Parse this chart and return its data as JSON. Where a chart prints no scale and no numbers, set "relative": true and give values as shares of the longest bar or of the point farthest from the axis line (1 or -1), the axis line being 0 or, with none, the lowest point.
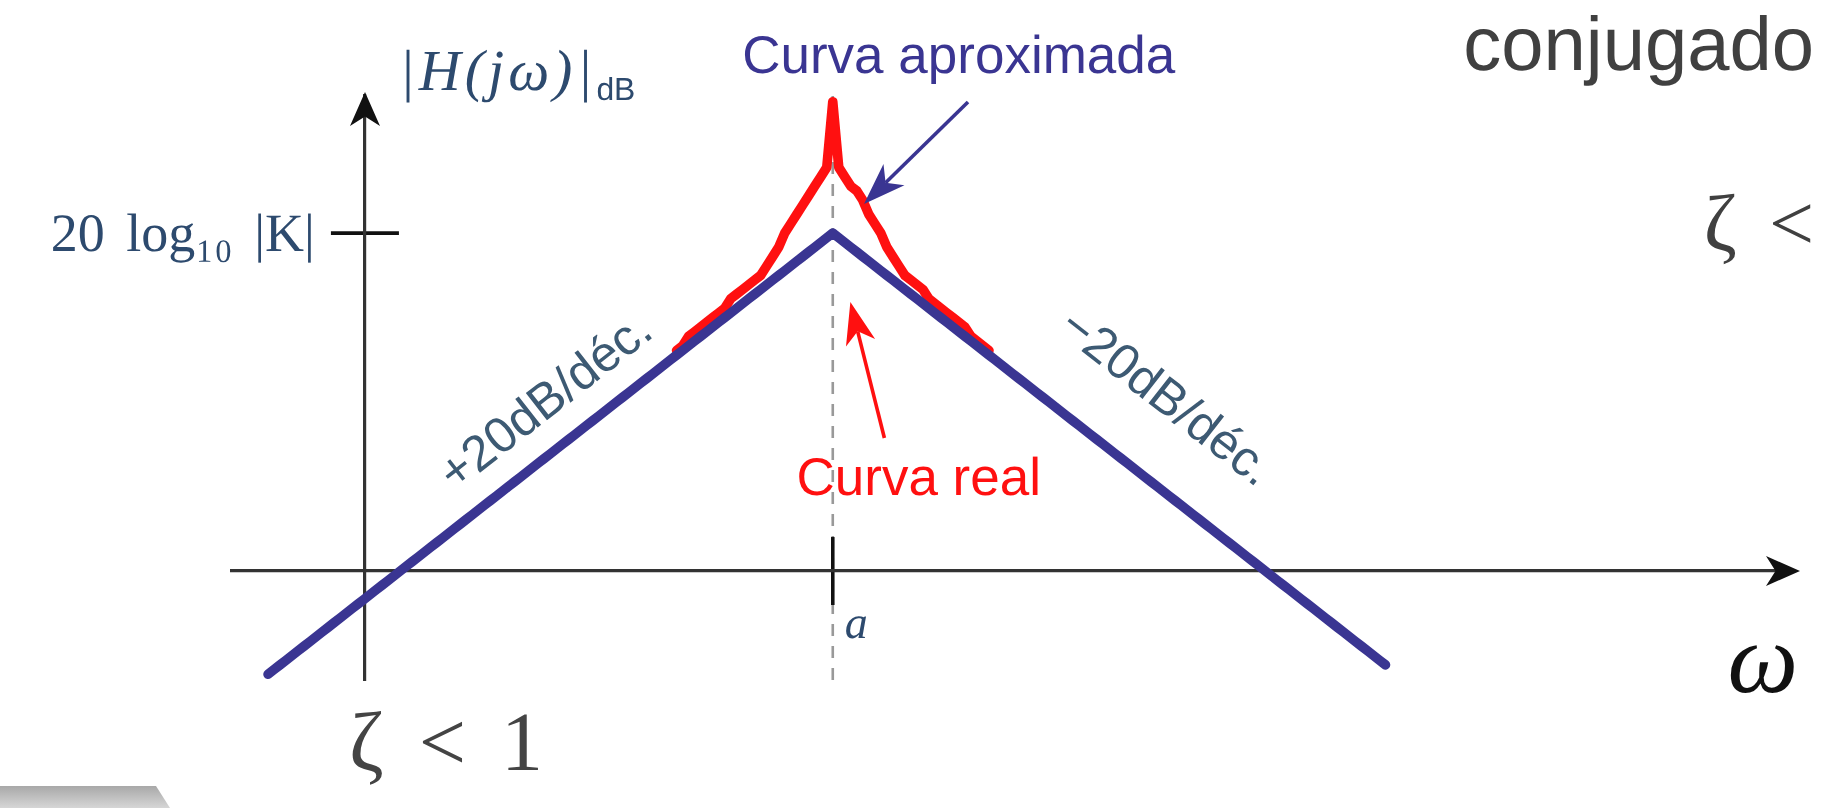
{
  "chart_data": {
    "type": "line",
    "title": "conjugado",
    "subtitle": "ζ <",
    "xlabel": "ω",
    "ylabel": "|H(jω)|$_{dB}$",
    "relative": true,
    "categories": [
      null,
      null,
      null,
      null,
      null,
      null,
      null,
      null,
      null,
      null,
      null,
      null,
      null,
      null,
      null,
      null,
      null,
      null,
      null,
      null,
      null,
      null,
      null,
      null,
      null,
      null,
      null,
      null,
      null,
      null,
      null,
      null,
      null,
      null,
      null,
      null,
      null,
      null,
      null,
      null,
      null,
      null,
      null,
      null,
      null,
      null,
      null,
      null,
      null,
      null,
      null,
      null,
      null,
      null,
      null,
      null,
      null,
      null,
      null,
      null,
      null,
      null,
      null,
      null,
      null,
      null,
      null,
      null,
      null,
      null,
      null,
      null,
      null,
      null,
      null,
      null,
      null,
      null,
      null,
      null,
      null,
      null,
      null,
      null,
      null,
      null,
      null,
      null,
      null,
      null,
      null,
      null,
      null,
      null,
      null,
      null,
      null,
      null,
      null,
      null,
      null,
      null,
      null,
      null,
      null,
      null,
      null,
      null,
      null,
      null,
      null,
      null,
      null,
      null,
      null,
      null,
      null,
      null,
      null,
      null,
      null,
      null,
      null,
      null,
      null,
      null,
      null,
      null,
      null,
      null,
      null,
      null,
      null,
      null,
      null,
      null,
      null,
      null,
      null,
      null,
      null,
      null,
      null,
      null,
      null,
      null,
      null,
      null,
      null,
      null,
      null,
      null,
      null,
      null,
      null,
      null,
      null,
      null,
      null,
      null,
      null,
      null,
      null,
      null,
      null,
      null,
      null,
      null,
      null,
      null,
      null,
      null,
      null,
      null,
      null,
      null,
      null,
      null,
      null,
      null,
      null,
      null,
      null,
      null,
      null,
      null,
      null,
      null,
      null,
      null,
      null,
      null,
      null,
      null,
      null,
      null,
      null,
      null,
      null,
      null,
      null,
      null,
      null,
      null,
      null,
      null,
      null,
      null,
      null,
      null,
      null,
      null,
      null,
      null,
      null,
      null,
      null,
      null,
      null,
      null,
      null,
      null,
      null,
      null,
      null,
      null,
      null,
      null,
      null,
      null,
      null,
      null,
      null,
      null,
      null,
      null,
      null,
      null,
      null,
      null,
      null,
      null,
      null,
      null,
      null,
      null,
      null,
      null,
      null,
      null,
      null,
      null,
      null,
      null,
      null,
      null,
      null,
      null,
      null,
      null,
      null
    ],
    "series": [
      {
        "name": "Curva aproximada",
        "color": "#3a3592",
        "values": [
          null,
          null,
          null,
          null,
          null,
          null,
          -0.22,
          -0.21,
          -0.2,
          -0.19,
          -0.18,
          -0.17,
          -0.16,
          -0.15,
          -0.14,
          -0.13,
          -0.12,
          -0.11,
          -0.1,
          -0.09,
          -0.08,
          -0.07,
          -0.06,
          -0.05,
          -0.04,
          -0.03,
          -0.02,
          -0.01,
          0,
          0.01,
          0.02,
          0.03,
          0.04,
          0.05,
          0.06,
          0.07,
          0.08,
          0.09,
          0.1,
          0.11,
          0.12,
          0.13,
          0.14,
          0.15,
          0.16,
          0.17,
          0.18,
          0.19,
          0.2,
          0.21,
          0.22,
          0.23,
          0.24,
          0.25,
          0.26,
          0.27,
          0.28,
          0.29,
          0.3,
          0.31,
          0.32,
          0.33,
          0.34,
          0.35,
          0.36,
          0.37,
          0.38,
          0.39,
          0.4,
          0.41,
          0.42,
          0.43,
          0.44,
          0.45,
          0.46,
          0.47,
          0.48,
          0.49,
          0.5,
          0.51,
          0.52,
          0.53,
          0.54,
          0.55,
          0.56,
          0.57,
          0.58,
          0.59,
          0.6,
          0.61,
          0.62,
          0.63,
          0.64,
          0.65,
          0.66,
          0.67,
          0.68,
          0.69,
          0.7,
          0.71,
          0.72,
          0.71,
          0.7,
          0.69,
          0.68,
          0.67,
          0.66,
          0.65,
          0.64,
          0.63,
          0.62,
          0.61,
          0.6,
          0.59,
          0.58,
          0.57,
          0.56,
          0.55,
          0.54,
          0.53,
          0.52,
          0.51,
          0.5,
          0.49,
          0.48,
          0.47,
          0.46,
          0.45,
          0.44,
          0.43,
          0.42,
          0.41,
          0.4,
          0.39,
          0.38,
          0.37,
          0.36,
          0.35,
          0.34,
          0.33,
          0.32,
          0.31,
          0.3,
          0.29,
          0.28,
          0.27,
          0.26,
          0.25,
          0.24,
          0.23,
          0.22,
          0.21,
          0.2,
          0.19,
          0.18,
          0.17,
          0.16,
          0.15,
          0.14,
          0.13,
          0.12,
          0.11,
          0.1,
          0.09,
          0.08,
          0.07,
          0.06,
          0.05,
          0.04,
          0.03,
          0.02,
          0.01,
          0,
          -0.01,
          -0.02,
          -0.03,
          -0.04,
          -0.05,
          -0.06,
          -0.07,
          -0.08,
          -0.09,
          -0.1,
          -0.11,
          -0.12,
          -0.13,
          -0.14,
          -0.15,
          -0.16,
          -0.17,
          -0.18,
          -0.19,
          -0.2,
          null,
          null,
          null,
          null,
          null,
          null,
          null,
          null,
          null,
          null,
          null,
          null,
          null,
          null,
          null,
          null,
          null,
          null,
          null,
          null,
          null,
          null,
          null,
          null,
          null,
          null,
          null,
          null,
          null,
          null,
          null,
          null,
          null,
          null,
          null,
          null,
          null,
          null,
          null,
          null,
          null,
          null,
          null,
          null,
          null,
          null,
          null,
          null,
          null,
          null,
          null,
          null,
          null,
          null,
          null,
          null,
          null,
          null,
          null,
          null,
          null,
          null,
          null,
          null,
          null,
          null,
          null,
          null
        ]
      },
      {
        "name": "Curva real",
        "color": "#ff1010",
        "values": [
          null,
          null,
          null,
          null,
          null,
          null,
          null,
          null,
          null,
          null,
          null,
          null,
          null,
          null,
          null,
          null,
          null,
          null,
          null,
          null,
          null,
          null,
          null,
          null,
          null,
          null,
          null,
          null,
          null,
          null,
          null,
          null,
          null,
          null,
          null,
          null,
          null,
          null,
          null,
          null,
          null,
          null,
          null,
          null,
          null,
          null,
          null,
          null,
          null,
          null,
          null,
          null,
          null,
          null,
          null,
          null,
          null,
          null,
          null,
          null,
          null,
          null,
          null,
          null,
          null,
          null,
          null,
          null,
          null,
          null,
          null,
          null,
          null,
          null,
          0.47,
          0.48,
          0.5,
          0.51,
          0.52,
          0.53,
          0.54,
          0.55,
          0.56,
          0.58,
          0.59,
          0.6,
          0.61,
          0.62,
          0.63,
          0.65,
          0.67,
          0.69,
          0.72,
          0.74,
          0.76,
          0.78,
          0.8,
          0.82,
          0.84,
          0.86,
          1,
          0.86,
          0.84,
          0.82,
          0.81,
          0.79,
          0.76,
          0.74,
          0.72,
          0.69,
          0.67,
          0.65,
          0.63,
          0.62,
          0.61,
          0.6,
          0.58,
          0.57,
          0.56,
          0.55,
          0.54,
          0.53,
          0.52,
          0.5,
          0.49,
          0.48,
          0.47,
          null,
          null,
          null,
          null,
          null,
          null,
          null,
          null,
          null,
          null,
          null,
          null,
          null,
          null,
          null,
          null,
          null,
          null,
          null,
          null,
          null,
          null,
          null,
          null,
          null,
          null,
          null,
          null,
          null,
          null,
          null,
          null,
          null,
          null,
          null,
          null,
          null,
          null,
          null,
          null,
          null,
          null,
          null,
          null,
          null,
          null,
          null,
          null,
          null,
          null,
          null,
          null,
          null,
          null,
          null,
          null,
          null,
          null,
          null,
          null,
          null,
          null,
          null,
          null,
          null,
          null,
          null,
          null,
          null,
          null,
          null,
          null,
          null,
          null,
          null,
          null,
          null,
          null,
          null,
          null,
          null,
          null,
          null,
          null,
          null,
          null,
          null,
          null,
          null,
          null,
          null,
          null,
          null,
          null,
          null,
          null,
          null,
          null,
          null,
          null,
          null,
          null,
          null,
          null,
          null,
          null,
          null,
          null,
          null,
          null,
          null,
          null,
          null,
          null,
          null,
          null,
          null,
          null,
          null,
          null,
          null,
          null,
          null,
          null,
          null,
          null,
          null,
          null,
          null,
          null,
          null,
          null,
          null,
          null
        ]
      }
    ],
    "ref_lines": [
      {
        "axis": "y",
        "value": 0.72,
        "label": "20 log₁₀ |K|"
      }
    ],
    "annotations": [
      "+20dB/déc.",
      "−20dB/déc.",
      "a",
      "ζ < 1"
    ]
  }
}
